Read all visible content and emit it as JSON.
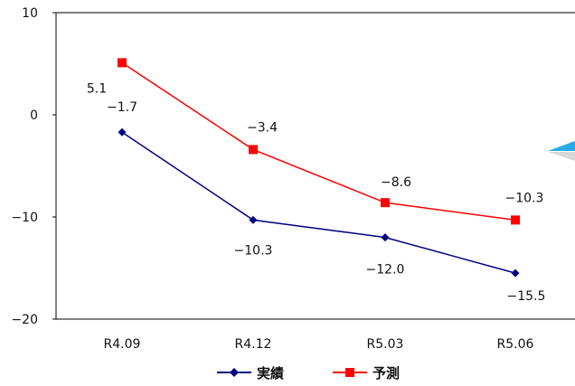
{
  "chart_data": {
    "type": "line",
    "categories": [
      "R4.09",
      "R4.12",
      "R5.03",
      "R5.06"
    ],
    "series": [
      {
        "name": "実績",
        "values": [
          -1.7,
          -10.3,
          -12.0,
          -15.5
        ],
        "color": "#000080",
        "marker": "diamond",
        "labels": [
          "−1.7",
          "−10.3",
          "−12.0",
          "−15.5"
        ]
      },
      {
        "name": "予測",
        "values": [
          5.1,
          -3.4,
          -8.6,
          -10.3
        ],
        "color": "#ff0000",
        "marker": "square",
        "labels": [
          "5.1",
          "−3.4",
          "−8.6",
          "−10.3"
        ]
      }
    ],
    "ylim": [
      -20,
      10
    ],
    "yticks": [
      10,
      0,
      -10,
      -20
    ],
    "ytick_labels": [
      "10",
      "0",
      "−10",
      "−20"
    ],
    "legend": "bottom",
    "grid": false,
    "decoration_color": "#29abe2"
  }
}
